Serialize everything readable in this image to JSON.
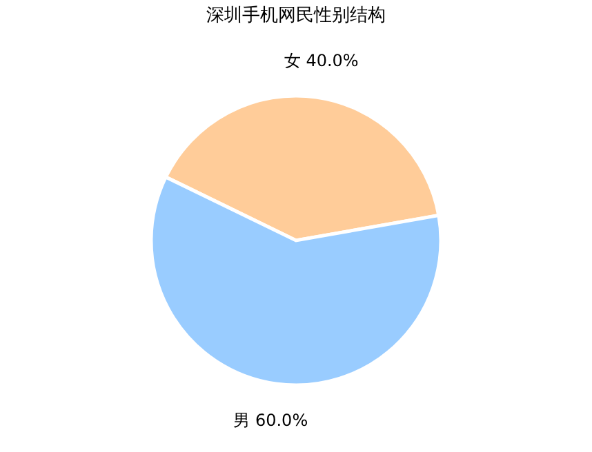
{
  "chart_data": {
    "type": "pie",
    "title": "深圳手机网民性别结构",
    "categories": [
      "女",
      "男"
    ],
    "values": [
      40.0,
      60.0
    ],
    "colors": [
      "#ffcc99",
      "#99ccff"
    ],
    "value_labels": [
      "40.0%",
      "60.0%"
    ],
    "legend": false
  }
}
